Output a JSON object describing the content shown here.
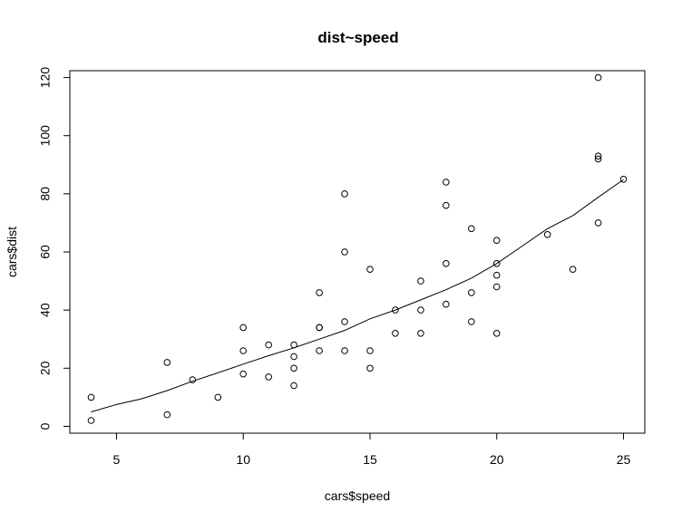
{
  "chart_data": {
    "type": "scatter",
    "title": "dist~speed",
    "xlabel": "cars$speed",
    "ylabel": "cars$dist",
    "xlim": [
      3.16,
      25.84
    ],
    "ylim": [
      -2.36,
      122.36
    ],
    "x_ticks": [
      5,
      10,
      15,
      20,
      25
    ],
    "y_ticks": [
      0,
      20,
      40,
      60,
      80,
      100,
      120
    ],
    "x_tick_labels": [
      "5",
      "10",
      "15",
      "20",
      "25"
    ],
    "y_tick_labels": [
      "0",
      "20",
      "40",
      "60",
      "80",
      "100",
      "120"
    ],
    "grid": false,
    "legend": "none",
    "series": [
      {
        "kind": "points",
        "marker": "open-circle",
        "color": "#000000",
        "points": [
          [
            4,
            2
          ],
          [
            4,
            10
          ],
          [
            7,
            4
          ],
          [
            7,
            22
          ],
          [
            8,
            16
          ],
          [
            9,
            10
          ],
          [
            10,
            18
          ],
          [
            10,
            26
          ],
          [
            10,
            34
          ],
          [
            11,
            17
          ],
          [
            11,
            28
          ],
          [
            12,
            14
          ],
          [
            12,
            20
          ],
          [
            12,
            24
          ],
          [
            12,
            28
          ],
          [
            13,
            26
          ],
          [
            13,
            34
          ],
          [
            13,
            34
          ],
          [
            13,
            46
          ],
          [
            14,
            26
          ],
          [
            14,
            36
          ],
          [
            14,
            60
          ],
          [
            14,
            80
          ],
          [
            15,
            20
          ],
          [
            15,
            26
          ],
          [
            15,
            54
          ],
          [
            16,
            32
          ],
          [
            16,
            40
          ],
          [
            17,
            32
          ],
          [
            17,
            40
          ],
          [
            17,
            50
          ],
          [
            18,
            42
          ],
          [
            18,
            56
          ],
          [
            18,
            76
          ],
          [
            18,
            84
          ],
          [
            19,
            36
          ],
          [
            19,
            46
          ],
          [
            19,
            68
          ],
          [
            20,
            32
          ],
          [
            20,
            48
          ],
          [
            20,
            52
          ],
          [
            20,
            56
          ],
          [
            20,
            64
          ],
          [
            22,
            66
          ],
          [
            23,
            54
          ],
          [
            24,
            70
          ],
          [
            24,
            92
          ],
          [
            24,
            93
          ],
          [
            24,
            120
          ],
          [
            25,
            85
          ]
        ]
      },
      {
        "kind": "line",
        "color": "#000000",
        "points": [
          [
            4,
            4.96
          ],
          [
            5,
            7.5
          ],
          [
            6,
            9.5
          ],
          [
            7,
            12.3
          ],
          [
            8,
            15.5
          ],
          [
            9,
            18.4
          ],
          [
            10,
            21.4
          ],
          [
            11,
            24.3
          ],
          [
            12,
            27.0
          ],
          [
            13,
            30.0
          ],
          [
            14,
            33.0
          ],
          [
            15,
            37.0
          ],
          [
            16,
            40.0
          ],
          [
            17,
            43.5
          ],
          [
            18,
            47.0
          ],
          [
            19,
            51.0
          ],
          [
            20,
            56.0
          ],
          [
            21,
            62.0
          ],
          [
            22,
            68.0
          ],
          [
            23,
            72.5
          ],
          [
            24,
            78.8
          ],
          [
            25,
            84.9
          ]
        ]
      }
    ]
  }
}
